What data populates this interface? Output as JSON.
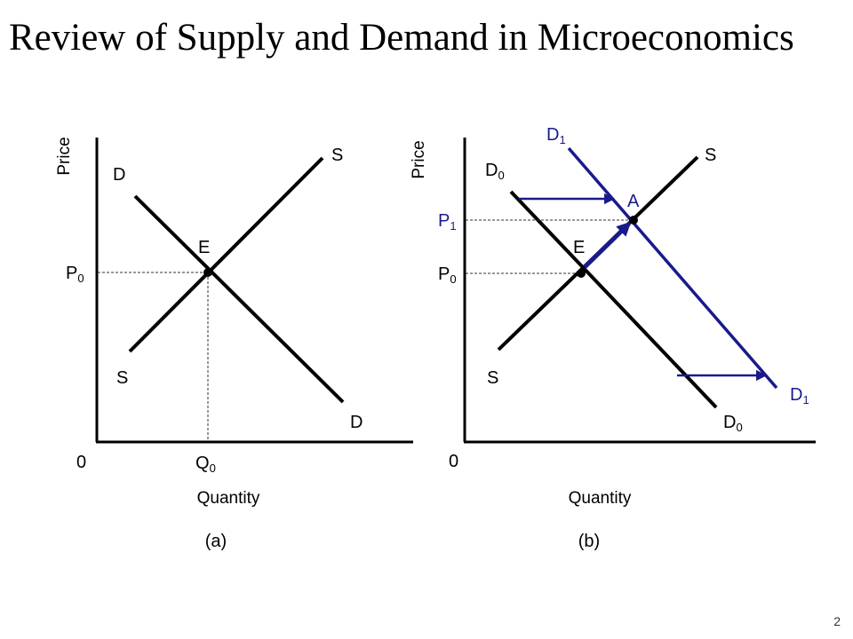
{
  "slide": {
    "title": "Review of Supply and Demand in Microeconomics",
    "page_number": "2"
  },
  "colors": {
    "text": "#000000",
    "curve": "#000000",
    "shift": "#1a1a8c",
    "guide": "#333333"
  },
  "panels": [
    {
      "caption": "(a)",
      "y_axis_label": "Price",
      "x_axis_label": "Quantity",
      "origin_label": "0",
      "demand_label_top": "D",
      "demand_label_bottom": "D",
      "supply_label_top": "S",
      "supply_label_bottom": "S",
      "equilibrium_label": "E",
      "price_label": {
        "main": "P",
        "sub": "0"
      },
      "quantity_label": {
        "main": "Q",
        "sub": "0"
      }
    },
    {
      "caption": "(b)",
      "y_axis_label": "Price",
      "x_axis_label": "Quantity",
      "origin_label": "0",
      "demand0_label_top": {
        "main": "D",
        "sub": "0"
      },
      "demand0_label_bottom": {
        "main": "D",
        "sub": "0"
      },
      "demand1_label_top": {
        "main": "D",
        "sub": "1"
      },
      "demand1_label_bottom": {
        "main": "D",
        "sub": "1"
      },
      "supply_label_top": "S",
      "supply_label_bottom": "S",
      "equilibrium_label": "E",
      "new_equilibrium_label": "A",
      "price0_label": {
        "main": "P",
        "sub": "0"
      },
      "price1_label": {
        "main": "P",
        "sub": "1"
      }
    }
  ]
}
